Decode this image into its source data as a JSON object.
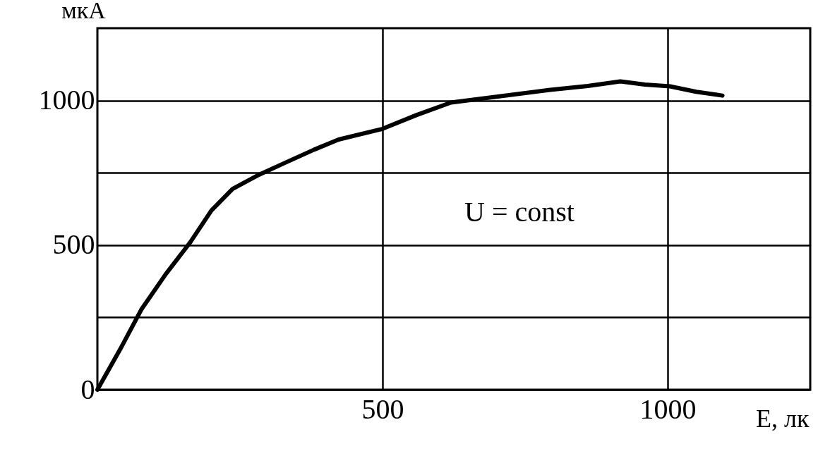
{
  "chart_data": {
    "type": "line",
    "xlabel": "E, лк",
    "ylabel": "мкА",
    "annotations": [
      "U = const"
    ],
    "x": [
      0,
      40,
      77,
      120,
      163,
      200,
      237,
      280,
      324,
      380,
      423,
      500,
      560,
      620,
      695,
      794,
      860,
      917,
      960,
      1004,
      1050,
      1096
    ],
    "series": [
      {
        "color": "#000000",
        "values": [
          0,
          140,
          277,
          400,
          510,
          620,
          694,
          740,
          780,
          830,
          865,
          902,
          950,
          993,
          1012,
          1037,
          1050,
          1066,
          1055,
          1049,
          1030,
          1017
        ]
      }
    ],
    "xlim": [
      0,
      1250
    ],
    "xticks": [
      500,
      1000
    ],
    "ylim": [
      0,
      1250
    ],
    "yticks": [
      0,
      {
        "value": 250,
        "label": null
      },
      500,
      {
        "value": 750,
        "label": null
      },
      1000
    ],
    "grid": true,
    "marker": "none",
    "line_style": "solid"
  }
}
